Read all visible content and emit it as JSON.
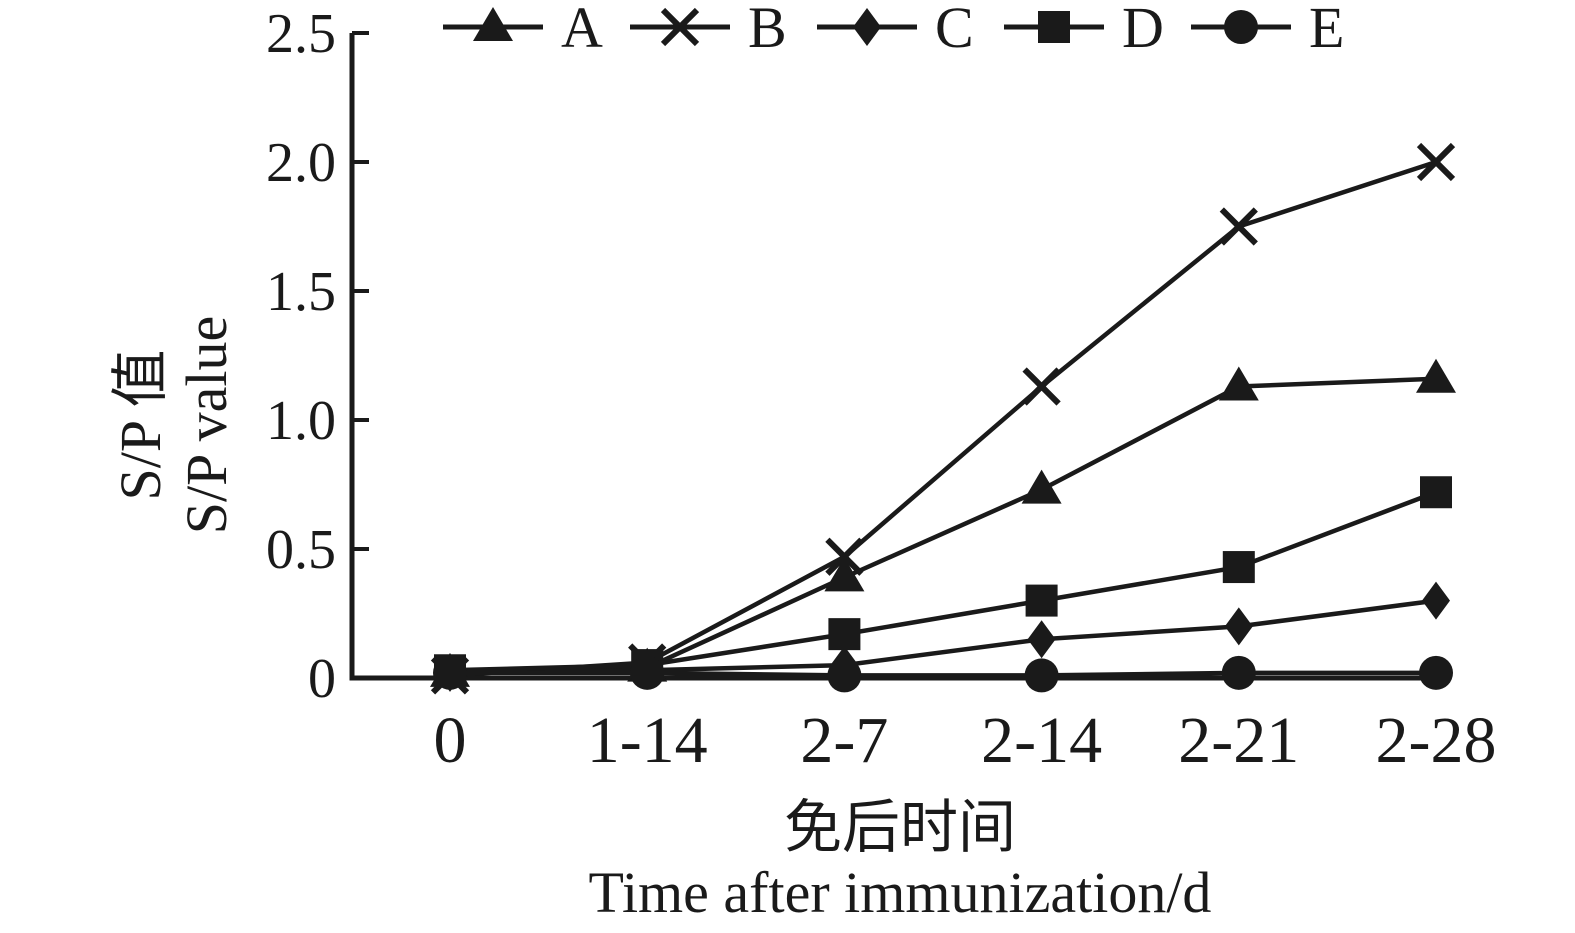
{
  "figure": {
    "background": "#ffffff",
    "ink_color": "#1a1a1a"
  },
  "chart_data": {
    "type": "line",
    "title": "",
    "categories": [
      "0",
      "1-14",
      "2-7",
      "2-14",
      "2-21",
      "2-28"
    ],
    "series": [
      {
        "name": "A",
        "marker": "triangle",
        "values": [
          0.02,
          0.04,
          0.39,
          0.73,
          1.13,
          1.16
        ]
      },
      {
        "name": "B",
        "marker": "x-cross",
        "values": [
          0.01,
          0.06,
          0.47,
          1.13,
          1.75,
          2.0
        ]
      },
      {
        "name": "C",
        "marker": "diamond",
        "values": [
          0.02,
          0.03,
          0.05,
          0.15,
          0.2,
          0.3
        ]
      },
      {
        "name": "D",
        "marker": "square",
        "values": [
          0.03,
          0.05,
          0.17,
          0.3,
          0.43,
          0.72
        ]
      },
      {
        "name": "E",
        "marker": "circle",
        "values": [
          0.02,
          0.02,
          0.01,
          0.01,
          0.02,
          0.02
        ]
      }
    ],
    "ylabel_cn": "S/P 值",
    "ylabel_en": "S/P value",
    "xlabel_cn": "免后时间",
    "xlabel_en": "Time after immunization/d",
    "ylim": [
      0,
      2.5
    ],
    "yticks": [
      0,
      0.5,
      1.0,
      1.5,
      2.0,
      2.5
    ],
    "ytick_labels": [
      "0",
      "0.5",
      "1.0",
      "1.5",
      "2.0",
      "2.5"
    ],
    "legend_entries": [
      "A",
      "B",
      "C",
      "D",
      "E"
    ],
    "legend_position": "top",
    "grid": false,
    "line_color": "#1a1a1a"
  }
}
